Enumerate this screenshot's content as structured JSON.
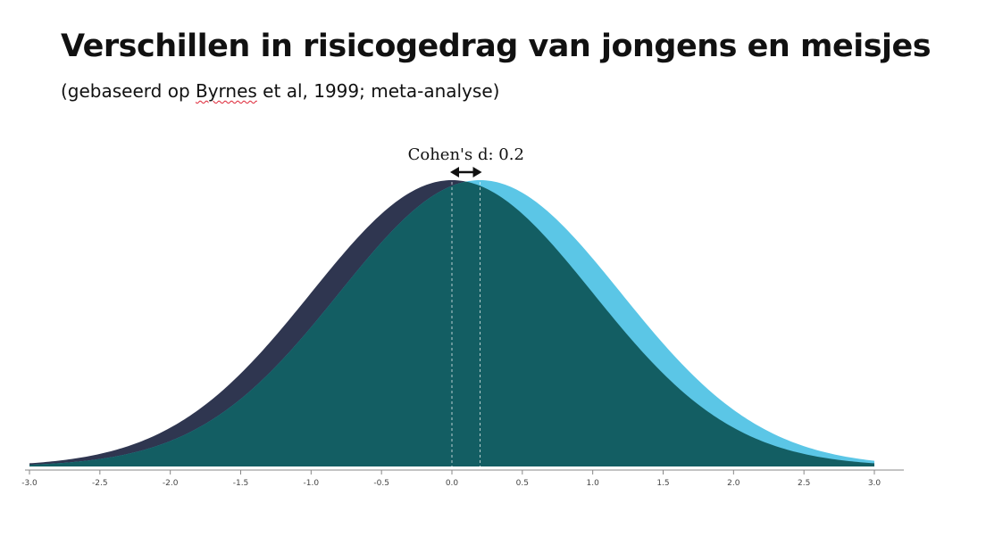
{
  "title": "Verschillen in risicogedrag van jongens en meisjes",
  "subtitle": {
    "before": "(gebaseerd op ",
    "marked": "Byrnes",
    "after": " et al, 1999; meta-analyse)"
  },
  "chart_data": {
    "type": "area",
    "title": "Verschillen in risicogedrag van jongens en meisjes",
    "xlabel": "",
    "ylabel": "",
    "xlim": [
      -3.0,
      3.0
    ],
    "x_ticks": [
      -3.0,
      -2.5,
      -2.0,
      -1.5,
      -1.0,
      -0.5,
      0.0,
      0.5,
      1.0,
      1.5,
      2.0,
      2.5,
      3.0
    ],
    "x_tick_labels": [
      "-3.0",
      "-2.5",
      "-2.0",
      "-1.5",
      "-1.0",
      "-0.5",
      "0.0",
      "0.5",
      "1.0",
      "1.5",
      "2.0",
      "2.5",
      "3.0"
    ],
    "grid": false,
    "legend": "none",
    "series": [
      {
        "distribution": "normal",
        "mean": 0.0,
        "sd": 1.0,
        "color": "#2f3650"
      },
      {
        "distribution": "normal",
        "mean": 0.2,
        "sd": 1.0,
        "color": "#5bc6e6"
      }
    ],
    "overlap_color": "#135e63",
    "annotation": {
      "text": "Cohen's d: 0.2",
      "from": 0.0,
      "to": 0.2
    }
  }
}
